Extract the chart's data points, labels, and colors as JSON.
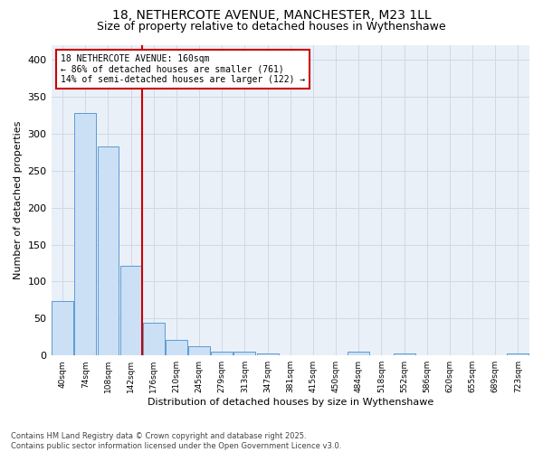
{
  "title_line1": "18, NETHERCOTE AVENUE, MANCHESTER, M23 1LL",
  "title_line2": "Size of property relative to detached houses in Wythenshawe",
  "xlabel": "Distribution of detached houses by size in Wythenshawe",
  "ylabel": "Number of detached properties",
  "bar_labels": [
    "40sqm",
    "74sqm",
    "108sqm",
    "142sqm",
    "176sqm",
    "210sqm",
    "245sqm",
    "279sqm",
    "313sqm",
    "347sqm",
    "381sqm",
    "415sqm",
    "450sqm",
    "484sqm",
    "518sqm",
    "552sqm",
    "586sqm",
    "620sqm",
    "655sqm",
    "689sqm",
    "723sqm"
  ],
  "bar_values": [
    74,
    328,
    283,
    122,
    44,
    21,
    12,
    5,
    5,
    3,
    0,
    0,
    0,
    5,
    0,
    3,
    0,
    0,
    0,
    0,
    3
  ],
  "bar_color": "#cce0f5",
  "bar_edgecolor": "#5b9bd5",
  "vline_x": 3.5,
  "vline_color": "#cc0000",
  "annotation_text": "18 NETHERCOTE AVENUE: 160sqm\n← 86% of detached houses are smaller (761)\n14% of semi-detached houses are larger (122) →",
  "annotation_box_color": "#cc0000",
  "annotation_text_color": "#000000",
  "ylim": [
    0,
    420
  ],
  "yticks": [
    0,
    50,
    100,
    150,
    200,
    250,
    300,
    350,
    400
  ],
  "grid_color": "#d0d8e8",
  "bg_color": "#eaf0f8",
  "footer_text": "Contains HM Land Registry data © Crown copyright and database right 2025.\nContains public sector information licensed under the Open Government Licence v3.0.",
  "title_fontsize": 10,
  "subtitle_fontsize": 9,
  "footer_fontsize": 6
}
